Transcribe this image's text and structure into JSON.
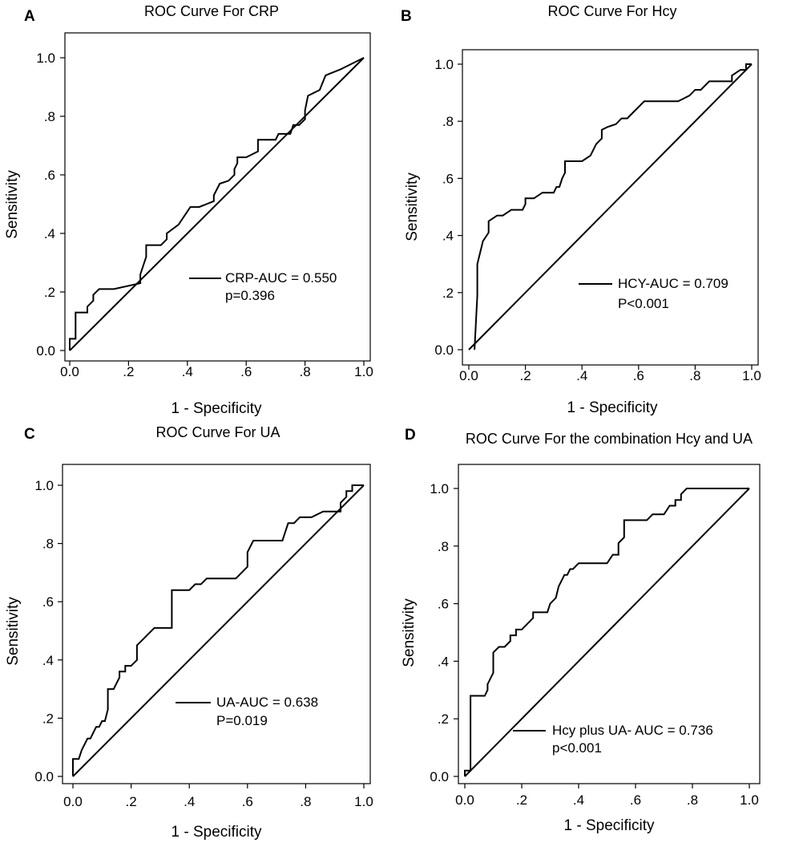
{
  "chart_data": [
    {
      "type": "line",
      "letter": "A",
      "title": "ROC Curve For CRP",
      "xlabel": "1 - Specificity",
      "ylabel": "Sensitivity",
      "xlim": [
        0,
        1
      ],
      "ylim": [
        0,
        1
      ],
      "xticks": [
        "0.0",
        ".2",
        ".4",
        ".6",
        ".8",
        "1.0"
      ],
      "yticks": [
        "0.0",
        ".2",
        ".4",
        ".6",
        ".8",
        "1.0"
      ],
      "legend": {
        "name": "CRP-AUC = 0.550",
        "note": "p=0.396"
      },
      "series": [
        {
          "name": "CRP",
          "x": [
            0,
            0,
            0.02,
            0.02,
            0.06,
            0.06,
            0.08,
            0.08,
            0.1,
            0.13,
            0.15,
            0.24,
            0.24,
            0.26,
            0.26,
            0.31,
            0.33,
            0.33,
            0.37,
            0.41,
            0.44,
            0.49,
            0.49,
            0.51,
            0.54,
            0.56,
            0.56,
            0.57,
            0.57,
            0.6,
            0.64,
            0.64,
            0.68,
            0.7,
            0.71,
            0.75,
            0.76,
            0.78,
            0.8,
            0.8,
            0.81,
            0.85,
            0.87,
            0.92,
            1.0
          ],
          "y": [
            0,
            0.04,
            0.04,
            0.13,
            0.13,
            0.15,
            0.17,
            0.19,
            0.21,
            0.21,
            0.21,
            0.23,
            0.26,
            0.32,
            0.36,
            0.36,
            0.38,
            0.4,
            0.43,
            0.49,
            0.49,
            0.51,
            0.53,
            0.57,
            0.58,
            0.6,
            0.62,
            0.64,
            0.66,
            0.66,
            0.68,
            0.72,
            0.72,
            0.72,
            0.74,
            0.74,
            0.77,
            0.77,
            0.79,
            0.82,
            0.87,
            0.89,
            0.94,
            0.96,
            1.0
          ]
        },
        {
          "name": "reference",
          "x": [
            0,
            1
          ],
          "y": [
            0,
            1
          ]
        }
      ]
    },
    {
      "type": "line",
      "letter": "B",
      "title": "ROC Curve For Hcy",
      "xlabel": "1 - Specificity",
      "ylabel": "Sensitivity",
      "xlim": [
        0,
        1
      ],
      "ylim": [
        0,
        1
      ],
      "xticks": [
        "0.0",
        ".2",
        ".4",
        ".6",
        ".8",
        "1.0"
      ],
      "yticks": [
        "0.0",
        ".2",
        ".4",
        ".6",
        ".8",
        "1.0"
      ],
      "legend": {
        "name": "HCY-AUC = 0.709",
        "note": "P<0.001"
      },
      "series": [
        {
          "name": "HCY",
          "x": [
            0.02,
            0.03,
            0.03,
            0.05,
            0.05,
            0.07,
            0.07,
            0.1,
            0.12,
            0.15,
            0.19,
            0.2,
            0.2,
            0.23,
            0.26,
            0.3,
            0.31,
            0.32,
            0.33,
            0.34,
            0.34,
            0.4,
            0.43,
            0.45,
            0.47,
            0.47,
            0.49,
            0.52,
            0.54,
            0.56,
            0.58,
            0.6,
            0.62,
            0.64,
            0.66,
            0.72,
            0.74,
            0.78,
            0.8,
            0.82,
            0.85,
            0.88,
            0.93,
            0.93,
            0.96,
            0.98,
            0.98,
            1.0
          ],
          "y": [
            0,
            0.19,
            0.3,
            0.38,
            0.38,
            0.41,
            0.45,
            0.47,
            0.47,
            0.49,
            0.49,
            0.51,
            0.53,
            0.53,
            0.55,
            0.55,
            0.57,
            0.57,
            0.6,
            0.62,
            0.66,
            0.66,
            0.68,
            0.72,
            0.74,
            0.77,
            0.78,
            0.79,
            0.81,
            0.81,
            0.83,
            0.85,
            0.87,
            0.87,
            0.87,
            0.87,
            0.87,
            0.89,
            0.91,
            0.91,
            0.94,
            0.94,
            0.94,
            0.96,
            0.98,
            0.98,
            1.0,
            1.0
          ]
        },
        {
          "name": "reference",
          "x": [
            0,
            1
          ],
          "y": [
            0,
            1
          ]
        }
      ]
    },
    {
      "type": "line",
      "letter": "C",
      "title": "ROC Curve For UA",
      "xlabel": "1 - Specificity",
      "ylabel": "Sensitivity",
      "xlim": [
        0,
        1
      ],
      "ylim": [
        0,
        1
      ],
      "xticks": [
        "0.0",
        ".2",
        ".4",
        ".6",
        ".8",
        "1.0"
      ],
      "yticks": [
        "0.0",
        ".2",
        ".4",
        ".6",
        ".8",
        "1.0"
      ],
      "legend": {
        "name": "UA-AUC = 0.638",
        "note": "P=0.019"
      },
      "series": [
        {
          "name": "UA",
          "x": [
            0,
            0,
            0.02,
            0.03,
            0.03,
            0.05,
            0.06,
            0.07,
            0.08,
            0.09,
            0.1,
            0.11,
            0.12,
            0.12,
            0.14,
            0.16,
            0.16,
            0.18,
            0.18,
            0.2,
            0.22,
            0.22,
            0.24,
            0.26,
            0.26,
            0.28,
            0.31,
            0.34,
            0.34,
            0.4,
            0.42,
            0.44,
            0.46,
            0.56,
            0.58,
            0.6,
            0.6,
            0.62,
            0.68,
            0.72,
            0.74,
            0.76,
            0.78,
            0.82,
            0.86,
            0.92,
            0.92,
            0.94,
            0.94,
            0.96,
            0.96,
            1.0
          ],
          "y": [
            0,
            0.06,
            0.06,
            0.09,
            0.09,
            0.13,
            0.13,
            0.15,
            0.17,
            0.17,
            0.19,
            0.19,
            0.23,
            0.3,
            0.3,
            0.34,
            0.36,
            0.36,
            0.38,
            0.38,
            0.4,
            0.45,
            0.47,
            0.49,
            0.49,
            0.51,
            0.51,
            0.51,
            0.64,
            0.64,
            0.66,
            0.66,
            0.68,
            0.68,
            0.7,
            0.72,
            0.77,
            0.81,
            0.81,
            0.81,
            0.87,
            0.87,
            0.89,
            0.89,
            0.91,
            0.91,
            0.94,
            0.96,
            0.98,
            0.98,
            1.0,
            1.0
          ]
        },
        {
          "name": "reference",
          "x": [
            0,
            1
          ],
          "y": [
            0,
            1
          ]
        }
      ]
    },
    {
      "type": "line",
      "letter": "D",
      "title": "ROC Curve For the combination Hcy and UA",
      "xlabel": "1 - Specificity",
      "ylabel": "Sensitivity",
      "xlim": [
        0,
        1
      ],
      "ylim": [
        0,
        1
      ],
      "xticks": [
        "0.0",
        ".2",
        ".4",
        ".6",
        ".8",
        "1.0"
      ],
      "yticks": [
        "0.0",
        ".2",
        ".4",
        ".6",
        ".8",
        "1.0"
      ],
      "legend": {
        "name": "Hcy plus UA- AUC = 0.736",
        "note": "p<0.001"
      },
      "series": [
        {
          "name": "Hcy plus UA",
          "x": [
            0,
            0,
            0.02,
            0.02,
            0.07,
            0.08,
            0.08,
            0.1,
            0.1,
            0.12,
            0.14,
            0.16,
            0.16,
            0.18,
            0.18,
            0.2,
            0.22,
            0.24,
            0.24,
            0.28,
            0.29,
            0.3,
            0.3,
            0.32,
            0.33,
            0.34,
            0.35,
            0.36,
            0.37,
            0.38,
            0.4,
            0.44,
            0.48,
            0.5,
            0.52,
            0.54,
            0.54,
            0.56,
            0.56,
            0.58,
            0.64,
            0.66,
            0.68,
            0.7,
            0.72,
            0.74,
            0.74,
            0.76,
            0.76,
            0.78,
            0.8,
            0.86,
            1.0
          ],
          "y": [
            0,
            0.02,
            0.02,
            0.28,
            0.28,
            0.3,
            0.32,
            0.36,
            0.43,
            0.45,
            0.45,
            0.47,
            0.49,
            0.49,
            0.51,
            0.51,
            0.53,
            0.55,
            0.57,
            0.57,
            0.57,
            0.6,
            0.6,
            0.62,
            0.66,
            0.68,
            0.7,
            0.7,
            0.72,
            0.72,
            0.74,
            0.74,
            0.74,
            0.74,
            0.77,
            0.77,
            0.81,
            0.83,
            0.89,
            0.89,
            0.89,
            0.91,
            0.91,
            0.91,
            0.94,
            0.94,
            0.96,
            0.96,
            0.98,
            1.0,
            1.0,
            1.0,
            1.0
          ]
        },
        {
          "name": "reference",
          "x": [
            0,
            1
          ],
          "y": [
            0,
            1
          ]
        }
      ]
    }
  ]
}
